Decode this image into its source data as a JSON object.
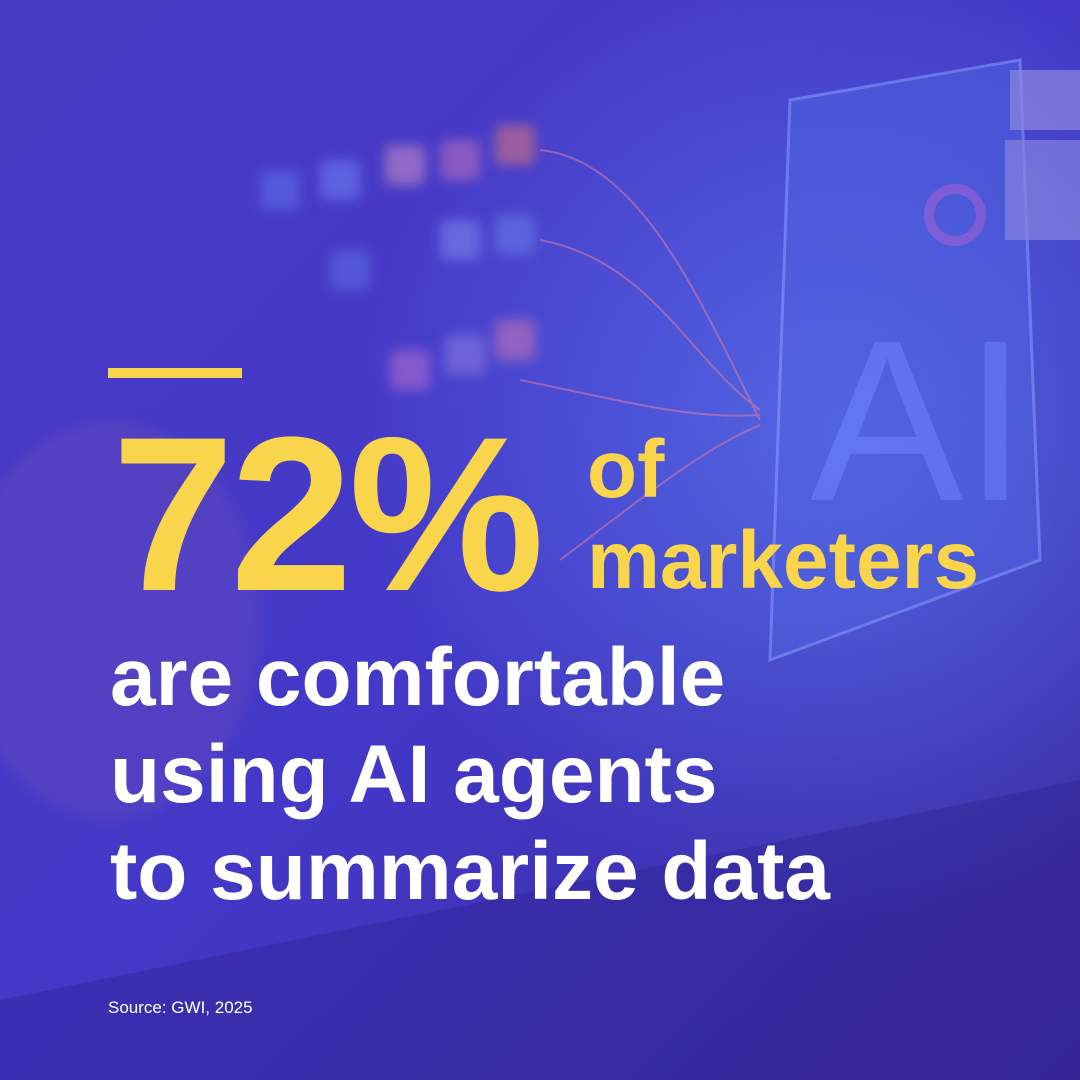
{
  "background": {
    "screen_text": "AI"
  },
  "headline": {
    "stat": "72%",
    "stat_suffix_line1": "of",
    "stat_suffix_line2": "marketers",
    "lines": [
      "are comfortable",
      "using AI agents",
      "to summarize data"
    ]
  },
  "footer": {
    "source": "Source: GWI, 2025"
  }
}
